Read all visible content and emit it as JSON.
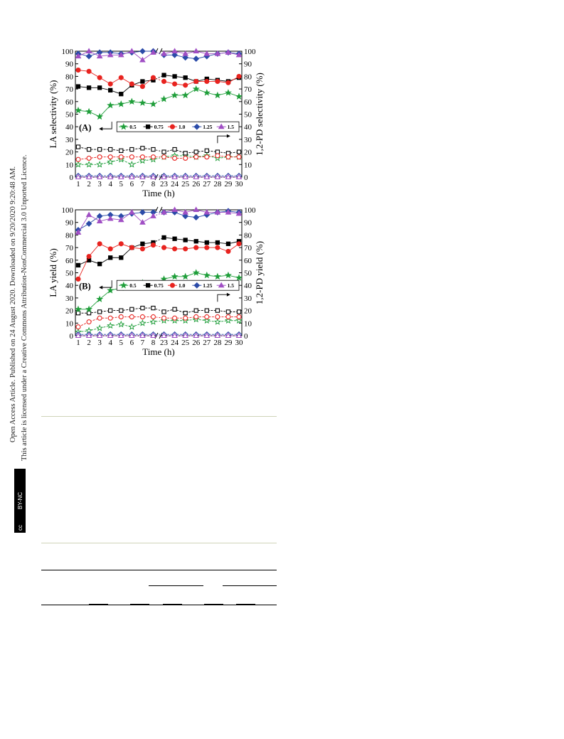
{
  "sidebar": {
    "line1": "Open Access Article. Published on 24 August 2020. Downloaded on 9/20/2020 9:20:48 AM.",
    "line2": "This article is licensed under a Creative Commons Attribution-NonCommercial 3.0 Unported Licence.",
    "badge_cc": "cc",
    "badge_text": "BY-NC"
  },
  "chart_data": [
    {
      "type": "line",
      "panel_label": "(A)",
      "xlabel": "Time (h)",
      "ylabel_left": "LA selectivity (%)",
      "ylabel_right": "1,2-PD selectivity (%)",
      "categories": [
        "1",
        "2",
        "3",
        "4",
        "5",
        "6",
        "7",
        "8",
        "23",
        "24",
        "25",
        "26",
        "27",
        "28",
        "29",
        "30"
      ],
      "ylim": [
        0,
        100
      ],
      "yticks": [
        0,
        10,
        20,
        30,
        40,
        50,
        60,
        70,
        80,
        90,
        100
      ],
      "axis_break_after_index": 7,
      "legend_placement": "center-right",
      "series": [
        {
          "name": "0.5",
          "color": "#1f9e3a",
          "marker": "star",
          "values": [
            53,
            52,
            48,
            57,
            58,
            60,
            59,
            58,
            62,
            65,
            65,
            70,
            67,
            65,
            67,
            64
          ],
          "pd_values": [
            10,
            10,
            10,
            12,
            14,
            10,
            13,
            14,
            16,
            17,
            17,
            16,
            17,
            15,
            16,
            16
          ]
        },
        {
          "name": "0.75",
          "color": "#000000",
          "marker": "square",
          "values": [
            72,
            71,
            71,
            69,
            66,
            73,
            76,
            77,
            81,
            80,
            79,
            76,
            78,
            77,
            76,
            79
          ],
          "pd_values": [
            24,
            22,
            22,
            22,
            21,
            22,
            23,
            22,
            20,
            22,
            19,
            20,
            21,
            20,
            19,
            20
          ]
        },
        {
          "name": "1.0",
          "color": "#e8231f",
          "marker": "circle",
          "values": [
            85,
            84,
            79,
            74,
            79,
            74,
            72,
            79,
            76,
            74,
            73,
            76,
            76,
            76,
            75,
            80
          ],
          "pd_values": [
            14,
            15,
            16,
            16,
            16,
            16,
            16,
            16,
            16,
            15,
            15,
            16,
            16,
            17,
            16,
            16
          ]
        },
        {
          "name": "1.25",
          "color": "#2b4ba8",
          "marker": "diamond",
          "values": [
            98,
            96,
            99,
            99,
            98,
            99,
            100,
            100,
            97,
            97,
            95,
            94,
            96,
            98,
            99,
            98
          ],
          "pd_values": [
            1,
            1,
            1,
            1,
            1,
            1,
            1,
            1,
            1,
            1,
            1,
            1,
            1,
            1,
            1,
            1
          ]
        },
        {
          "name": "1.5",
          "color": "#a04fc4",
          "marker": "triangle",
          "values": [
            96,
            100,
            96,
            97,
            97,
            100,
            93,
            99,
            98,
            100,
            98,
            100,
            98,
            98,
            99,
            97
          ],
          "pd_values": [
            0,
            0,
            0,
            0,
            0,
            0,
            0,
            0,
            0,
            0,
            0,
            0,
            0,
            0,
            0,
            0
          ]
        }
      ]
    },
    {
      "type": "line",
      "panel_label": "(B)",
      "xlabel": "Time (h)",
      "ylabel_left": "LA yield (%)",
      "ylabel_right": "1,2-PD yield (%)",
      "categories": [
        "1",
        "2",
        "3",
        "4",
        "5",
        "6",
        "7",
        "8",
        "23",
        "24",
        "25",
        "26",
        "27",
        "28",
        "29",
        "30"
      ],
      "ylim": [
        0,
        100
      ],
      "yticks": [
        0,
        10,
        20,
        30,
        40,
        50,
        60,
        70,
        80,
        90,
        100
      ],
      "axis_break_after_index": 7,
      "legend_placement": "center-right",
      "series": [
        {
          "name": "0.5",
          "color": "#1f9e3a",
          "marker": "star",
          "values": [
            21,
            21,
            29,
            36,
            38,
            40,
            42,
            41,
            45,
            47,
            47,
            50,
            48,
            47,
            48,
            46
          ],
          "pd_values": [
            3,
            4,
            6,
            8,
            9,
            7,
            10,
            11,
            12,
            12,
            12,
            13,
            12,
            11,
            12,
            12
          ]
        },
        {
          "name": "0.75",
          "color": "#000000",
          "marker": "square",
          "values": [
            56,
            60,
            57,
            62,
            62,
            70,
            73,
            74,
            78,
            77,
            76,
            75,
            74,
            74,
            73,
            75
          ],
          "pd_values": [
            18,
            18,
            19,
            20,
            20,
            21,
            22,
            22,
            19,
            21,
            18,
            20,
            20,
            20,
            19,
            19
          ]
        },
        {
          "name": "1.0",
          "color": "#e8231f",
          "marker": "circle",
          "values": [
            45,
            63,
            73,
            69,
            73,
            70,
            69,
            72,
            70,
            69,
            69,
            70,
            70,
            70,
            67,
            73
          ],
          "pd_values": [
            7,
            11,
            14,
            14,
            15,
            15,
            15,
            15,
            14,
            14,
            14,
            15,
            15,
            15,
            15,
            15
          ]
        },
        {
          "name": "1.25",
          "color": "#2b4ba8",
          "marker": "diamond",
          "values": [
            84,
            89,
            95,
            96,
            95,
            97,
            98,
            98,
            98,
            98,
            95,
            94,
            96,
            98,
            99,
            98
          ],
          "pd_values": [
            1,
            1,
            1,
            1,
            1,
            1,
            1,
            1,
            1,
            1,
            1,
            1,
            1,
            1,
            1,
            1
          ]
        },
        {
          "name": "1.5",
          "color": "#a04fc4",
          "marker": "triangle",
          "values": [
            82,
            96,
            91,
            93,
            92,
            98,
            90,
            95,
            98,
            100,
            98,
            100,
            98,
            98,
            98,
            97
          ],
          "pd_values": [
            0,
            0,
            0,
            0,
            0,
            0,
            0,
            0,
            0,
            0,
            0,
            0,
            0,
            0,
            0,
            0
          ]
        }
      ]
    }
  ]
}
